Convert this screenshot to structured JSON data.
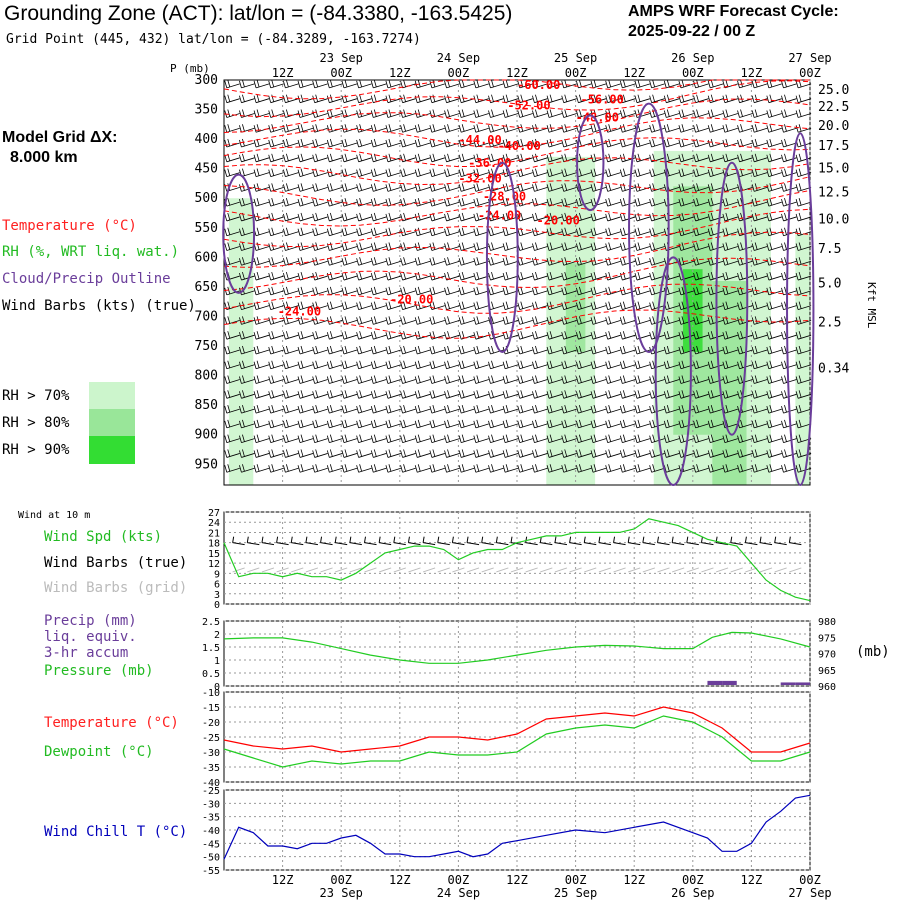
{
  "header": {
    "title": "Grounding Zone (ACT):  lat/lon = (-84.3380, -163.5425)",
    "subtitle": "Grid Point (445, 432) lat/lon = (-84.3289, -163.7274)",
    "cycle_line1": "AMPS WRF Forecast Cycle:",
    "cycle_line2": "2025-09-22 / 00  Z"
  },
  "side": {
    "grid_dx_line1": "Model Grid ΔX:",
    "grid_dx_line2": "8.000 km",
    "temperature": "Temperature (°C)",
    "rh": "RH (%, WRT liq. wat.)",
    "cloud": "Cloud/Precip Outline",
    "wind_barbs": "Wind Barbs (kts) (true)",
    "rh70": "RH > 70%",
    "rh80": "RH > 80%",
    "rh90": "RH > 90%",
    "wind10": "Wind at 10 m",
    "wind_spd": "Wind Spd (kts)",
    "wind_barbs_true": "Wind Barbs (true)",
    "wind_barbs_grid": "Wind Barbs (grid)",
    "precip1": "Precip (mm)",
    "precip2": "liq. equiv.",
    "precip3": "3-hr accum",
    "pressure": "Pressure (mb)",
    "pressure_unit": "(mb)",
    "temp2": "Temperature (°C)",
    "dewpoint": "Dewpoint (°C)",
    "windchill": "Wind Chill T (°C)",
    "p_axis": "P (mb)",
    "kft_axis": "Kft MSL"
  },
  "colors": {
    "temperature": "#ff0000",
    "rh70": "#ccf5cc",
    "rh80": "#99e699",
    "rh90": "#33dd33",
    "cloud": "#6a3d9a",
    "wind_spd": "#22cc22",
    "pressure": "#22cc22",
    "dewpoint": "#22cc22",
    "windchill": "#0000bb",
    "precip": "#6a3d9a",
    "grid_barbs": "#bbbbbb"
  },
  "chart_data": [
    {
      "type": "line",
      "name": "cross-section",
      "x_ticks": [
        "12Z",
        "00Z",
        "12Z",
        "00Z",
        "12Z",
        "00Z",
        "12Z",
        "00Z",
        "12Z",
        "00Z"
      ],
      "x_hours": [
        12,
        24,
        36,
        48,
        60,
        72,
        84,
        96,
        108,
        120
      ],
      "date_labels": [
        {
          "label": "23 Sep",
          "hour": 24
        },
        {
          "label": "24 Sep",
          "hour": 48
        },
        {
          "label": "25 Sep",
          "hour": 72
        },
        {
          "label": "26 Sep",
          "hour": 96
        },
        {
          "label": "27 Sep",
          "hour": 120
        }
      ],
      "xlim": [
        0,
        120
      ],
      "pressure_levels": [
        300,
        350,
        400,
        450,
        500,
        550,
        600,
        650,
        700,
        750,
        800,
        850,
        900,
        950
      ],
      "ylim_mb": [
        300,
        985
      ],
      "height_kft_ticks": [
        {
          "label": "25.0",
          "mb": 317
        },
        {
          "label": "22.5",
          "mb": 346
        },
        {
          "label": "20.0",
          "mb": 378
        },
        {
          "label": "17.5",
          "mb": 412
        },
        {
          "label": "15.0",
          "mb": 450
        },
        {
          "label": "12.5",
          "mb": 490
        },
        {
          "label": "10.0",
          "mb": 536
        },
        {
          "label": "7.5",
          "mb": 586
        },
        {
          "label": "5.0",
          "mb": 644
        },
        {
          "label": "2.5",
          "mb": 710
        },
        {
          "label": "0.34",
          "mb": 788
        }
      ],
      "temperature_labels": [
        {
          "label": "-60.00",
          "hour": 60,
          "mb": 315
        },
        {
          "label": "-56.00",
          "hour": 73,
          "mb": 340
        },
        {
          "label": "-52.00",
          "hour": 58,
          "mb": 350
        },
        {
          "label": "-48.00",
          "hour": 72,
          "mb": 370
        },
        {
          "label": "-44.00",
          "hour": 48,
          "mb": 408
        },
        {
          "label": "-40.00",
          "hour": 56,
          "mb": 418
        },
        {
          "label": "-36.00",
          "hour": 50,
          "mb": 447
        },
        {
          "label": "-32.00",
          "hour": 48,
          "mb": 473
        },
        {
          "label": "-28.00",
          "hour": 53,
          "mb": 504
        },
        {
          "label": "-24.00",
          "hour": 52,
          "mb": 536
        },
        {
          "label": "-20.00",
          "hour": 64,
          "mb": 544
        },
        {
          "label": "-20.00",
          "hour": 34,
          "mb": 678
        },
        {
          "label": "-24.00",
          "hour": 11,
          "mb": 698
        }
      ]
    },
    {
      "type": "line",
      "name": "wind-speed",
      "ylim": [
        0,
        27
      ],
      "y_ticks": [
        0,
        3,
        6,
        9,
        12,
        15,
        18,
        21,
        24,
        27
      ],
      "series": [
        {
          "name": "Wind Spd (kts)",
          "x": [
            0,
            3,
            6,
            9,
            12,
            15,
            18,
            21,
            24,
            27,
            30,
            33,
            36,
            39,
            42,
            45,
            48,
            51,
            54,
            57,
            60,
            63,
            66,
            69,
            72,
            75,
            78,
            81,
            84,
            87,
            90,
            93,
            96,
            99,
            102,
            105,
            108,
            111,
            114,
            117,
            120
          ],
          "y": [
            18,
            8,
            9,
            9,
            8,
            9,
            8,
            8,
            7,
            9,
            12,
            15,
            16,
            17,
            17,
            16,
            13,
            15,
            16,
            16,
            18,
            19,
            20,
            20,
            21,
            21,
            21,
            21,
            22,
            25,
            24,
            23,
            21,
            19,
            18,
            17,
            12,
            7,
            4,
            2,
            1
          ]
        }
      ]
    },
    {
      "type": "line",
      "name": "precip-pressure",
      "ylim": [
        0,
        2.5
      ],
      "y_ticks": [
        0.0,
        0.5,
        1.0,
        1.5,
        2.0,
        2.5
      ],
      "y2lim": [
        960,
        980
      ],
      "y2_ticks": [
        960,
        965,
        970,
        975,
        980
      ],
      "series": [
        {
          "name": "Pressure (mb)",
          "x": [
            0,
            6,
            12,
            18,
            24,
            30,
            36,
            42,
            48,
            54,
            60,
            66,
            72,
            78,
            84,
            90,
            96,
            100,
            104,
            108,
            114,
            120
          ],
          "y": [
            974.5,
            974.8,
            974.8,
            973.5,
            971.5,
            969.5,
            968.0,
            967.0,
            967.0,
            968.0,
            969.5,
            971.0,
            972.0,
            972.5,
            972.3,
            971.5,
            971.5,
            975.0,
            976.5,
            976.3,
            974.5,
            972.0
          ]
        },
        {
          "name": "Precip (mm)",
          "x": [
            96,
            99,
            102,
            105,
            108,
            111,
            114,
            117,
            120
          ],
          "y": [
            0,
            0,
            0.12,
            0.12,
            0,
            0,
            0,
            0.06,
            0.06
          ]
        }
      ]
    },
    {
      "type": "line",
      "name": "temperature-dewpoint",
      "ylim": [
        -40,
        -10
      ],
      "y_ticks": [
        -40,
        -35,
        -30,
        -25,
        -20,
        -15,
        -10
      ],
      "series": [
        {
          "name": "Temperature (°C)",
          "x": [
            0,
            6,
            12,
            18,
            24,
            30,
            36,
            42,
            48,
            54,
            60,
            66,
            72,
            78,
            84,
            90,
            96,
            102,
            108,
            114,
            120
          ],
          "y": [
            -26,
            -28,
            -29,
            -28,
            -30,
            -29,
            -28,
            -25,
            -25,
            -26,
            -24,
            -19,
            -18,
            -17,
            -18,
            -15,
            -17,
            -22,
            -30,
            -30,
            -27
          ]
        },
        {
          "name": "Dewpoint (°C)",
          "x": [
            0,
            6,
            12,
            18,
            24,
            30,
            36,
            42,
            48,
            54,
            60,
            66,
            72,
            78,
            84,
            90,
            96,
            102,
            108,
            114,
            120
          ],
          "y": [
            -29,
            -32,
            -35,
            -33,
            -34,
            -33,
            -33,
            -30,
            -31,
            -31,
            -30,
            -24,
            -22,
            -21,
            -22,
            -18,
            -20,
            -25,
            -33,
            -33,
            -30
          ]
        }
      ]
    },
    {
      "type": "line",
      "name": "wind-chill",
      "ylim": [
        -55,
        -25
      ],
      "y_ticks": [
        -55,
        -50,
        -45,
        -40,
        -35,
        -30,
        -25
      ],
      "series": [
        {
          "name": "Wind Chill T (°C)",
          "x": [
            0,
            3,
            6,
            9,
            12,
            15,
            18,
            21,
            24,
            27,
            30,
            33,
            36,
            39,
            42,
            45,
            48,
            51,
            54,
            57,
            60,
            66,
            72,
            78,
            84,
            90,
            96,
            99,
            102,
            105,
            108,
            111,
            114,
            117,
            120
          ],
          "y": [
            -51,
            -39,
            -41,
            -46,
            -46,
            -47,
            -45,
            -45,
            -43,
            -42,
            -45,
            -49,
            -49,
            -50,
            -50,
            -49,
            -48,
            -50,
            -49,
            -45,
            -44,
            -42,
            -40,
            -41,
            -39,
            -37,
            -41,
            -43,
            -48,
            -48,
            -45,
            -37,
            -33,
            -28,
            -27
          ]
        }
      ]
    }
  ]
}
